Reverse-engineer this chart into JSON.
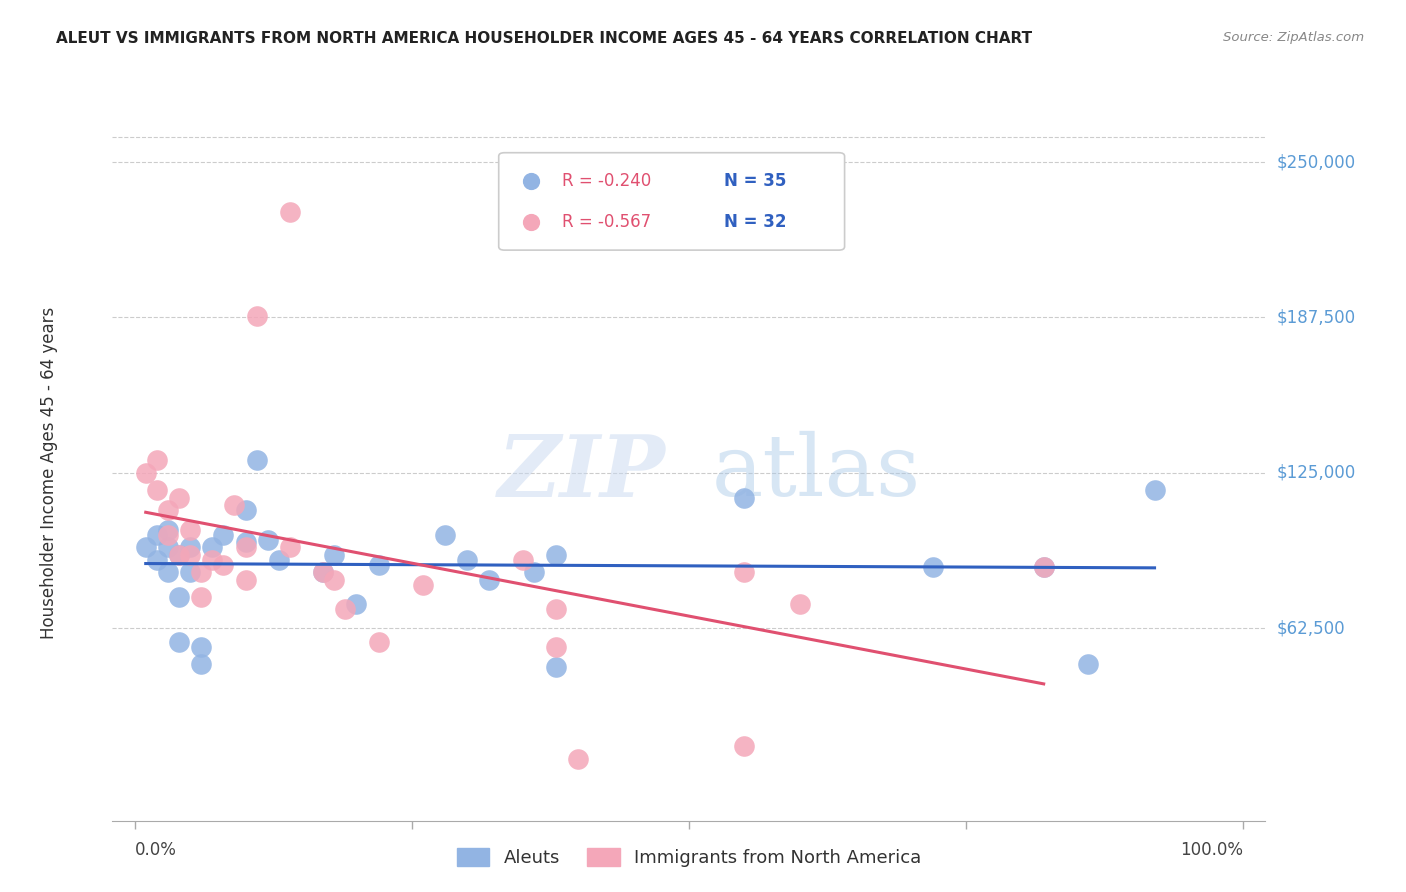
{
  "title": "ALEUT VS IMMIGRANTS FROM NORTH AMERICA HOUSEHOLDER INCOME AGES 45 - 64 YEARS CORRELATION CHART",
  "source": "Source: ZipAtlas.com",
  "ylabel": "Householder Income Ages 45 - 64 years",
  "yticks": [
    0,
    62500,
    125000,
    187500,
    250000
  ],
  "ytick_labels": [
    "",
    "$62,500",
    "$125,000",
    "$187,500",
    "$250,000"
  ],
  "ymax": 265000,
  "ymin": -15000,
  "xmin": -0.02,
  "xmax": 1.02,
  "legend_blue_R": "R = -0.240",
  "legend_blue_N": "N = 35",
  "legend_pink_R": "R = -0.567",
  "legend_pink_N": "N = 32",
  "legend_label_blue": "Aleuts",
  "legend_label_pink": "Immigrants from North America",
  "blue_color": "#92b4e3",
  "pink_color": "#f4a7b9",
  "trendline_blue": "#3060c0",
  "trendline_pink": "#e05070",
  "watermark_zip": "ZIP",
  "watermark_atlas": "atlas",
  "blue_x": [
    0.01,
    0.02,
    0.02,
    0.03,
    0.03,
    0.03,
    0.04,
    0.04,
    0.04,
    0.05,
    0.05,
    0.06,
    0.06,
    0.07,
    0.08,
    0.1,
    0.1,
    0.11,
    0.12,
    0.13,
    0.17,
    0.18,
    0.2,
    0.22,
    0.28,
    0.3,
    0.32,
    0.36,
    0.38,
    0.38,
    0.55,
    0.72,
    0.82,
    0.86,
    0.92
  ],
  "blue_y": [
    95000,
    100000,
    90000,
    95000,
    102000,
    85000,
    92000,
    75000,
    57000,
    95000,
    85000,
    55000,
    48000,
    95000,
    100000,
    97000,
    110000,
    130000,
    98000,
    90000,
    85000,
    92000,
    72000,
    88000,
    100000,
    90000,
    82000,
    85000,
    47000,
    92000,
    115000,
    87000,
    87000,
    48000,
    118000
  ],
  "pink_x": [
    0.01,
    0.02,
    0.02,
    0.03,
    0.03,
    0.04,
    0.04,
    0.05,
    0.05,
    0.06,
    0.06,
    0.07,
    0.08,
    0.09,
    0.1,
    0.1,
    0.11,
    0.14,
    0.14,
    0.17,
    0.18,
    0.19,
    0.22,
    0.26,
    0.35,
    0.4,
    0.55,
    0.55,
    0.6,
    0.82,
    0.38,
    0.38
  ],
  "pink_y": [
    125000,
    130000,
    118000,
    110000,
    100000,
    115000,
    92000,
    102000,
    92000,
    85000,
    75000,
    90000,
    88000,
    112000,
    95000,
    82000,
    188000,
    230000,
    95000,
    85000,
    82000,
    70000,
    57000,
    80000,
    90000,
    10000,
    85000,
    15000,
    72000,
    87000,
    70000,
    55000
  ]
}
